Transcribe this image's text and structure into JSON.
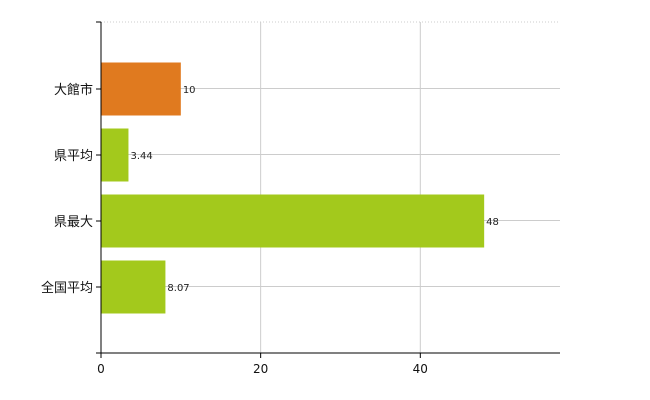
{
  "chart_data": {
    "type": "bar",
    "orientation": "horizontal",
    "title": "",
    "xlabel": "",
    "ylabel": "",
    "categories": [
      "大館市",
      "県平均",
      "県最大",
      "全国平均"
    ],
    "values": [
      10,
      3.44,
      48,
      8.07
    ],
    "value_labels": [
      "10",
      "3.44",
      "48",
      "8.07"
    ],
    "xlim": [
      0,
      57.5
    ],
    "xticks": [
      0,
      20,
      40
    ],
    "xtick_labels": [
      "0",
      "20",
      "40"
    ],
    "grid": true,
    "legend": "none",
    "colors": {
      "highlight": "#e07a1f",
      "default": "#a3c91c",
      "grid": "#cccccc",
      "axis": "#000000"
    },
    "bar_colors": [
      "#e07a1f",
      "#a3c91c",
      "#a3c91c",
      "#a3c91c"
    ]
  }
}
